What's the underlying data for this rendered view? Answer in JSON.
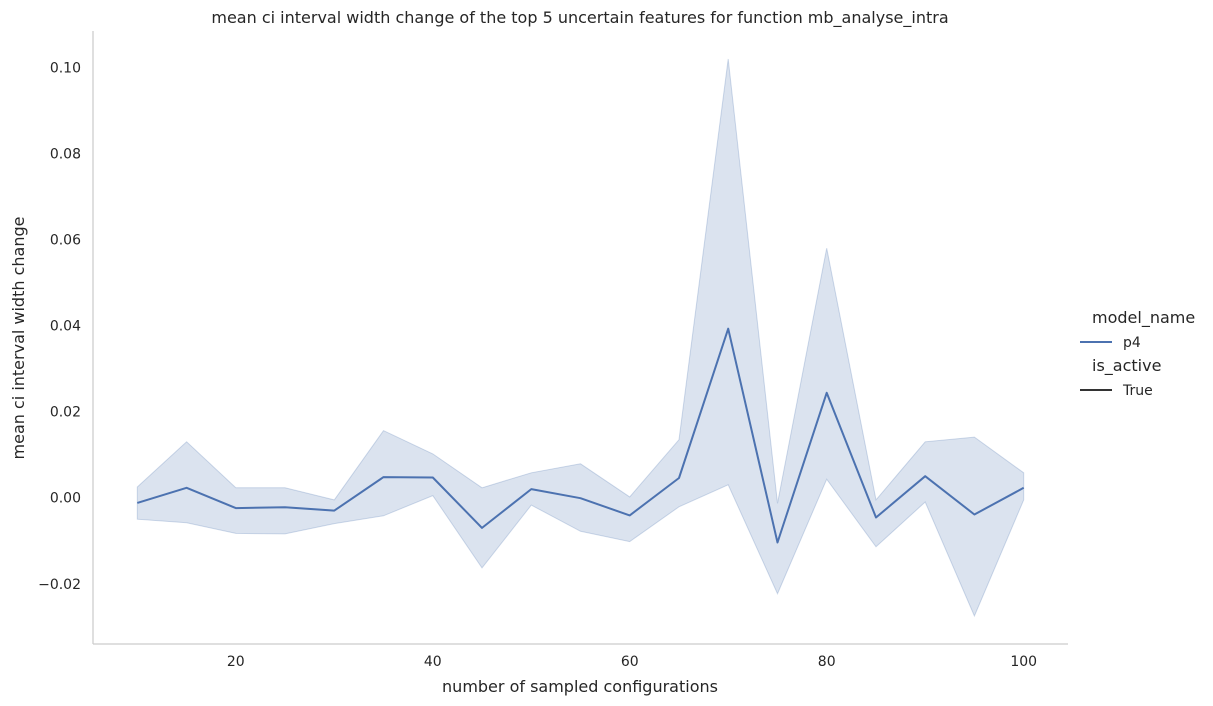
{
  "chart_data": {
    "type": "line",
    "title": "mean ci interval width change of the top 5 uncertain features for function mb_analyse_intra",
    "xlabel": "number of sampled configurations",
    "ylabel": "mean ci interval width change",
    "xlim": [
      5.5,
      104.5
    ],
    "ylim": [
      -0.034,
      0.1085
    ],
    "xticks": [
      20,
      40,
      60,
      80,
      100
    ],
    "xtick_labels": [
      "20",
      "40",
      "60",
      "80",
      "100"
    ],
    "yticks": [
      -0.02,
      0.0,
      0.02,
      0.04,
      0.06,
      0.08,
      0.1
    ],
    "ytick_labels": [
      "−0.02",
      "0.00",
      "0.02",
      "0.04",
      "0.06",
      "0.08",
      "0.10"
    ],
    "grid": false,
    "legend": {
      "placement": "right",
      "groups": [
        {
          "title": "model_name",
          "entries": [
            {
              "label": "p4",
              "color": "#4c72b0"
            }
          ]
        },
        {
          "title": "is_active",
          "entries": [
            {
              "label": "True",
              "color": "#333333"
            }
          ]
        }
      ]
    },
    "series": [
      {
        "name": "p4",
        "color": "#4c72b0",
        "band_color": "#4c72b0",
        "x": [
          10,
          15,
          20,
          25,
          30,
          35,
          40,
          45,
          50,
          55,
          60,
          65,
          70,
          75,
          80,
          85,
          90,
          95,
          100
        ],
        "y": [
          -0.0012,
          0.0023,
          -0.0024,
          -0.0022,
          -0.003,
          0.0048,
          0.0047,
          -0.007,
          0.002,
          -0.0001,
          -0.0041,
          0.0046,
          0.0393,
          -0.0104,
          0.0244,
          -0.0046,
          0.005,
          -0.0039,
          0.0023
        ],
        "lower": [
          -0.005,
          -0.0058,
          -0.0083,
          -0.0084,
          -0.006,
          -0.0042,
          0.0005,
          -0.0163,
          -0.0017,
          -0.0078,
          -0.0102,
          -0.0021,
          0.003,
          -0.0223,
          0.0043,
          -0.0114,
          -0.001,
          -0.0275,
          -0.0005
        ],
        "upper": [
          0.0025,
          0.013,
          0.0023,
          0.0023,
          -0.0005,
          0.0156,
          0.0102,
          0.0023,
          0.0058,
          0.0079,
          0.0002,
          0.0135,
          0.102,
          -0.0013,
          0.058,
          -0.0005,
          0.013,
          0.0141,
          0.0058
        ]
      }
    ]
  }
}
